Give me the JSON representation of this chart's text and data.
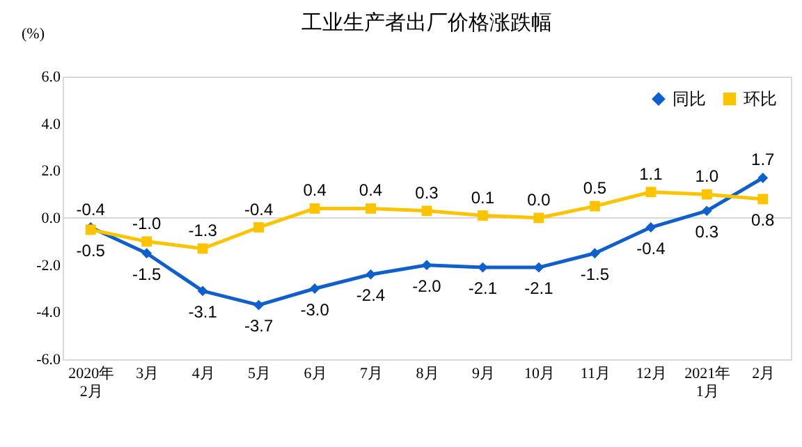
{
  "chart_data": {
    "type": "line",
    "title": "工业生产者出厂价格涨跌幅",
    "ylabel": "(%)",
    "categories": [
      "2020年\n2月",
      "3月",
      "4月",
      "5月",
      "6月",
      "7月",
      "8月",
      "9月",
      "10月",
      "11月",
      "12月",
      "2021年\n1月",
      "2月"
    ],
    "series": [
      {
        "name": "同比",
        "color": "#0f5fcc",
        "marker": "diamond",
        "values": [
          -0.4,
          -1.5,
          -3.1,
          -3.7,
          -3.0,
          -2.4,
          -2.0,
          -2.1,
          -2.1,
          -1.5,
          -0.4,
          0.3,
          1.7
        ],
        "value_labels": [
          "-0.4",
          "-1.5",
          "-3.1",
          "-3.7",
          "-3.0",
          "-2.4",
          "-2.0",
          "-2.1",
          "-2.1",
          "-1.5",
          "-0.4",
          "0.3",
          "1.7"
        ]
      },
      {
        "name": "环比",
        "color": "#fcc400",
        "marker": "square",
        "values": [
          -0.5,
          -1.0,
          -1.3,
          -0.4,
          0.4,
          0.4,
          0.3,
          0.1,
          0.0,
          0.5,
          1.1,
          1.0,
          0.8
        ],
        "value_labels": [
          "-0.5",
          "-1.0",
          "-1.3",
          "-0.4",
          "0.4",
          "0.4",
          "0.3",
          "0.1",
          "0.0",
          "0.5",
          "1.1",
          "1.0",
          "0.8"
        ]
      }
    ],
    "ylim": [
      -6,
      6
    ],
    "yticks": [
      {
        "value": -6,
        "label": "-6.0"
      },
      {
        "value": -4,
        "label": "-4.0"
      },
      {
        "value": -2,
        "label": "-2.0"
      },
      {
        "value": 0,
        "label": "0.0"
      },
      {
        "value": 2,
        "label": "2.0"
      },
      {
        "value": 4,
        "label": "4.0"
      },
      {
        "value": 6,
        "label": "6.0"
      }
    ],
    "ref_lines": [
      {
        "axis": "y",
        "value": 0,
        "color": "#d9d9d9"
      }
    ],
    "grid": false,
    "legend": "top right",
    "line_style": "solid"
  }
}
